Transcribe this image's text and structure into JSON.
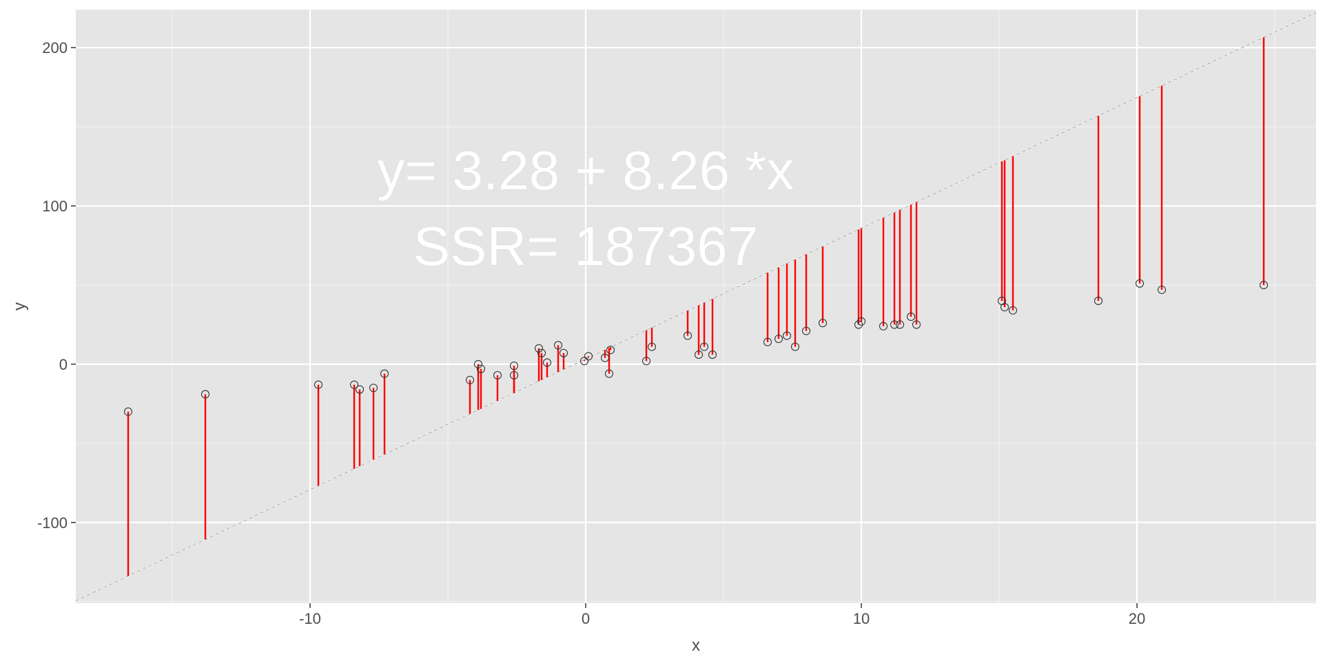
{
  "chart_data": {
    "type": "scatter",
    "title": "",
    "xlabel": "x",
    "ylabel": "y",
    "xlim": [
      -18.5,
      26.5
    ],
    "ylim": [
      -151,
      224
    ],
    "x_ticks": [
      -10,
      0,
      10,
      20
    ],
    "x_tick_labels": [
      "-10",
      "0",
      "10",
      "20"
    ],
    "y_ticks": [
      -100,
      0,
      100,
      200
    ],
    "y_tick_labels": [
      "-100",
      "0",
      "100",
      "200"
    ],
    "grid": true,
    "background": "#e5e5e5",
    "fit_line": {
      "intercept": 3.28,
      "slope": 8.26,
      "style": "dashed",
      "color": "#ffffff"
    },
    "residual_color": "#ff0000",
    "annotations": [
      "y= 3.28 + 8.26 *x",
      "SSR= 187367"
    ],
    "points": [
      {
        "x": -16.6,
        "y": -30
      },
      {
        "x": -13.8,
        "y": -19
      },
      {
        "x": -9.7,
        "y": -13
      },
      {
        "x": -8.4,
        "y": -13
      },
      {
        "x": -8.2,
        "y": -16
      },
      {
        "x": -7.7,
        "y": -15
      },
      {
        "x": -7.3,
        "y": -6
      },
      {
        "x": -4.2,
        "y": -10
      },
      {
        "x": -3.9,
        "y": 0
      },
      {
        "x": -3.8,
        "y": -3
      },
      {
        "x": -3.2,
        "y": -7
      },
      {
        "x": -2.6,
        "y": -1
      },
      {
        "x": -2.6,
        "y": -7
      },
      {
        "x": -1.7,
        "y": 10
      },
      {
        "x": -1.6,
        "y": 7
      },
      {
        "x": -1.4,
        "y": 1
      },
      {
        "x": -1.0,
        "y": 12
      },
      {
        "x": -0.8,
        "y": 7
      },
      {
        "x": -0.05,
        "y": 2
      },
      {
        "x": 0.1,
        "y": 5
      },
      {
        "x": 0.7,
        "y": 4
      },
      {
        "x": 0.85,
        "y": -6
      },
      {
        "x": 0.9,
        "y": 9
      },
      {
        "x": 2.2,
        "y": 2
      },
      {
        "x": 2.4,
        "y": 11
      },
      {
        "x": 3.7,
        "y": 18
      },
      {
        "x": 4.1,
        "y": 6
      },
      {
        "x": 4.3,
        "y": 11
      },
      {
        "x": 4.6,
        "y": 6
      },
      {
        "x": 6.6,
        "y": 14
      },
      {
        "x": 7.0,
        "y": 16
      },
      {
        "x": 7.3,
        "y": 18
      },
      {
        "x": 7.6,
        "y": 11
      },
      {
        "x": 8.0,
        "y": 21
      },
      {
        "x": 8.6,
        "y": 26
      },
      {
        "x": 9.9,
        "y": 25
      },
      {
        "x": 10.0,
        "y": 27
      },
      {
        "x": 10.8,
        "y": 24
      },
      {
        "x": 11.2,
        "y": 25
      },
      {
        "x": 11.4,
        "y": 25
      },
      {
        "x": 11.8,
        "y": 30
      },
      {
        "x": 12.0,
        "y": 25
      },
      {
        "x": 15.1,
        "y": 40
      },
      {
        "x": 15.2,
        "y": 36
      },
      {
        "x": 15.5,
        "y": 34
      },
      {
        "x": 18.6,
        "y": 40
      },
      {
        "x": 20.1,
        "y": 51
      },
      {
        "x": 20.9,
        "y": 47
      },
      {
        "x": 24.6,
        "y": 50
      }
    ]
  }
}
